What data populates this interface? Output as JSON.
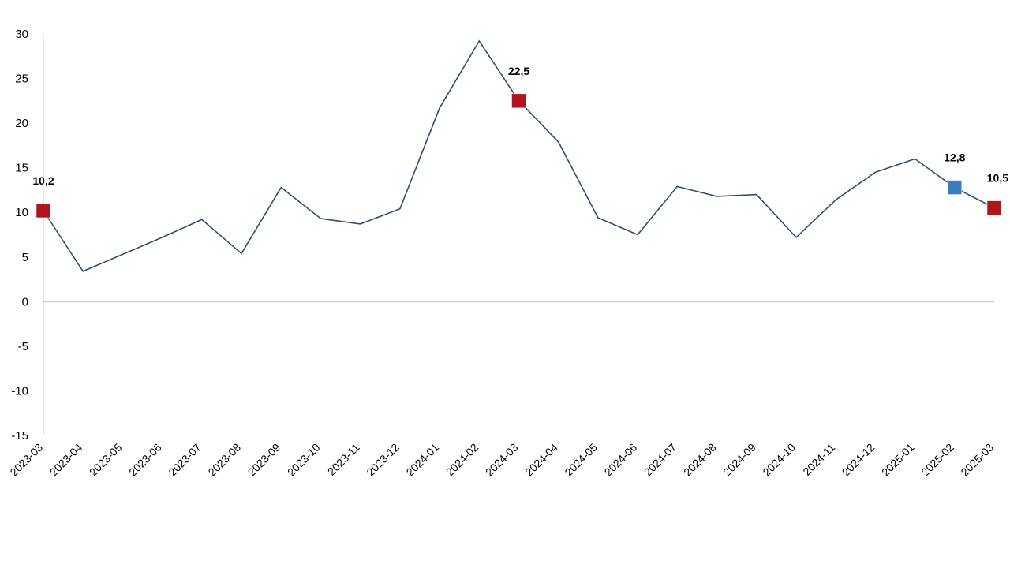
{
  "chart_data": {
    "type": "line",
    "title": "",
    "xlabel": "",
    "ylabel": "",
    "ylim": [
      -15,
      30
    ],
    "yticks": [
      30,
      25,
      20,
      15,
      10,
      5,
      0,
      -5,
      -10,
      -15
    ],
    "grid": false,
    "legend": "none",
    "categories": [
      "2023-03",
      "2023-04",
      "2023-05",
      "2023-06",
      "2023-07",
      "2023-08",
      "2023-09",
      "2023-10",
      "2023-11",
      "2023-12",
      "2024-01",
      "2024-02",
      "2024-03",
      "2024-04",
      "2024-05",
      "2024-06",
      "2024-07",
      "2024-08",
      "2024-09",
      "2024-10",
      "2024-11",
      "2024-12",
      "2025-01",
      "2025-02",
      "2025-03"
    ],
    "series": [
      {
        "values": [
          10.2,
          3.4,
          5.3,
          7.2,
          9.2,
          5.4,
          12.8,
          9.3,
          8.7,
          10.4,
          21.7,
          29.2,
          22.5,
          17.9,
          9.4,
          7.5,
          12.9,
          11.8,
          12.0,
          7.2,
          11.4,
          14.5,
          16.0,
          12.8,
          10.5
        ]
      }
    ],
    "highlighted_points": [
      {
        "category": "2023-03",
        "value": 10.2,
        "label": "10,2",
        "color": "#b0141c"
      },
      {
        "category": "2024-03",
        "value": 22.5,
        "label": "22,5",
        "color": "#b0141c"
      },
      {
        "category": "2025-02",
        "value": 12.8,
        "label": "12,8",
        "color": "#3b7dbf"
      },
      {
        "category": "2025-03",
        "value": 10.5,
        "label": "10,5",
        "color": "#b0141c"
      }
    ],
    "colors": {
      "line": "#2f4f6f",
      "axis": "#c8c8c8"
    }
  }
}
